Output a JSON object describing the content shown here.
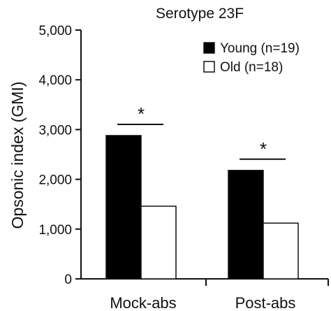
{
  "chart_data": {
    "type": "bar",
    "title": "Serotype 23F",
    "xlabel": "",
    "ylabel": "Opsonic index (GMI)",
    "categories": [
      "Mock-abs",
      "Post-abs"
    ],
    "series": [
      {
        "name": "Young (n=19)",
        "values": [
          2880,
          2180
        ],
        "color": "#000000"
      },
      {
        "name": "Old (n=18)",
        "values": [
          1460,
          1120
        ],
        "color": "#ffffff"
      }
    ],
    "ylim": [
      0,
      5000
    ],
    "yticks": [
      "0",
      "1,000",
      "2,000",
      "3,000",
      "4,000",
      "5,000"
    ],
    "legend_position": "top-right",
    "grid": false,
    "annotations": [
      {
        "category": "Mock-abs",
        "text": "*"
      },
      {
        "category": "Post-abs",
        "text": "*"
      }
    ]
  }
}
